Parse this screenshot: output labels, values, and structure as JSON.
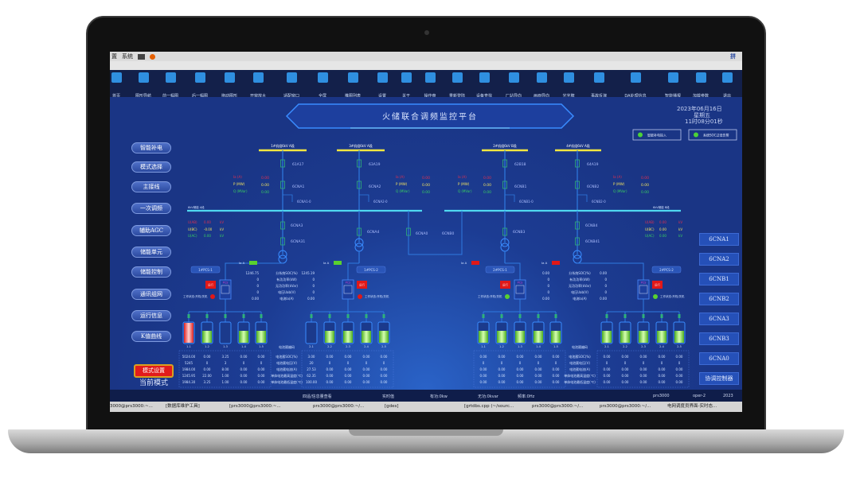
{
  "os_bar": {
    "items": [
      "置",
      "系统"
    ],
    "input_method": "拼"
  },
  "toolbar": {
    "items": [
      {
        "label": "首页",
        "icon": "home-icon"
      },
      {
        "label": "图形导航",
        "icon": "grid-icon"
      },
      {
        "label": "前一幅图",
        "icon": "back-icon"
      },
      {
        "label": "后一幅图",
        "icon": "forward-icon"
      },
      {
        "label": "拖动图形",
        "icon": "move-icon"
      },
      {
        "label": "开窗放大",
        "icon": "zoom-window-icon"
      },
      {
        "label": "适配窗口",
        "icon": "fit-window-icon"
      },
      {
        "label": "全屏",
        "icon": "fullscreen-icon"
      },
      {
        "label": "推图列表",
        "icon": "list-icon"
      },
      {
        "label": "设置",
        "icon": "gear-icon"
      },
      {
        "label": "关于",
        "icon": "info-icon"
      },
      {
        "label": "操作盘",
        "icon": "dial-icon"
      },
      {
        "label": "重新登陆",
        "icon": "users-icon"
      },
      {
        "label": "设备查找",
        "icon": "search-icon"
      },
      {
        "label": "厂站导向",
        "icon": "building-icon"
      },
      {
        "label": "画面导向",
        "icon": "monitor-icon"
      },
      {
        "label": "光字牌",
        "icon": "panel-icon"
      },
      {
        "label": "事故反演",
        "icon": "replay-icon"
      },
      {
        "label": "DA处理信息",
        "icon": "tree-icon"
      },
      {
        "label": "智能播报",
        "icon": "broadcast-icon"
      },
      {
        "label": "加载参数",
        "icon": "hourglass-icon"
      },
      {
        "label": "退出",
        "icon": "exit-icon"
      }
    ]
  },
  "header": {
    "title": "火储联合调频监控平台",
    "date": "2023年06月16日",
    "weekday": "星期五",
    "time": "11时08分01秒",
    "indicators": [
      {
        "label": "智能补电投入",
        "color": "#4cd137"
      },
      {
        "label": "系统SOC过低告警",
        "color": "#4cd137"
      }
    ]
  },
  "left_menu": [
    "智能补电",
    "模式选择",
    "主接线",
    "一次调频",
    "辅助AGC",
    "储能单元",
    "储能控制",
    "通讯组网",
    "运行信息",
    "K值曲线"
  ],
  "mode": {
    "button": "模式设置",
    "current_label": "当前模式"
  },
  "right_menu": [
    "6CNA1",
    "6CNA2",
    "6CNB1",
    "6CNB2",
    "6CNA3",
    "6CNB3",
    "6CNA0",
    "协调控制器"
  ],
  "diagram": {
    "feeders": [
      {
        "bus": "1#机组6kV A段",
        "brk1": "61A17",
        "brk2": "6CNA1",
        "branch": "6CNA1-0",
        "ia": "0.00",
        "p": "0.00",
        "q": "0.00"
      },
      {
        "bus": "3#机组6kV A段",
        "brk1": "63A19",
        "brk2": "6CNA2",
        "branch": "6CNA2-0",
        "ia": "0.00",
        "p": "0.00",
        "q": "0.00"
      },
      {
        "bus": "2#机组6kV B段",
        "brk1": "62B18",
        "brk2": "6CNB1",
        "branch": "6CNB1-0",
        "ia": "0.00",
        "p": "0.00",
        "q": "0.00"
      },
      {
        "bus": "4#机组6kV A段",
        "brk1": "64A19",
        "brk2": "6CNB2",
        "branch": "6CNB2-0",
        "ia": "0.00",
        "p": "0.00",
        "q": "0.00"
      }
    ],
    "meas_labels": {
      "ia": "Ia (A)",
      "p": "P (MW)",
      "q": "Q (MVar)"
    },
    "storage_buses": [
      {
        "name": "6kV储能 A段",
        "uab": "0.00",
        "ubc": "-0.00",
        "uac": "0.00"
      },
      {
        "name": "6kV储能 B段",
        "uab": "0.00",
        "ubc": "0.00",
        "uac": "0.00"
      }
    ],
    "volt_labels": {
      "uab": "U(AB)",
      "ubc": "U(BC)",
      "uac": "U(AC)",
      "unit": "kV"
    },
    "lower_breakers": [
      "6CNA3",
      "6CNA31",
      "6CNA4",
      "6CNA0",
      "6CNB0",
      "6CNB3",
      "6CNB4",
      "6CNB41"
    ],
    "pcs_info_labels": [
      "分系统SOC(%)",
      "有功功率(kW)",
      "无功功率(kVar)",
      "电压Uab(V)",
      "电流Ia(A)"
    ],
    "pcs_info": [
      {
        "left": [
          "1246.75",
          "0",
          "0",
          "0",
          "0.00"
        ],
        "right": [
          "1245.19",
          "0",
          "0",
          "0",
          "0.00"
        ]
      },
      {
        "left": [
          "0.00",
          "0",
          "0",
          "0",
          "0.00"
        ],
        "right": [
          "0.00",
          "0",
          "0",
          "0",
          "0.00"
        ]
      }
    ],
    "pcs": [
      {
        "name": "1#PCS-1",
        "ia_label": "Ia A",
        "badge_color": "#59d12f",
        "run": "运行",
        "state": "工作状态:开机/关机",
        "state_color": "#e01818",
        "tag": "PCS"
      },
      {
        "name": "1#PCS-2",
        "ia_label": "Ia A",
        "badge_color": "#59d12f",
        "run": "运行",
        "state": "工作状态:开机/关机",
        "state_color": "#e01818",
        "tag": "PCS"
      },
      {
        "name": "2#PCS-1",
        "ia_label": "Ia A",
        "badge_color": "#e01818",
        "run": "运行",
        "state": "工作状态:开机/关机",
        "state_color": "#59d12f",
        "tag": "PCS"
      },
      {
        "name": "2#PCS-2",
        "ia_label": "Ia A",
        "badge_color": "#e01818",
        "run": "运行",
        "state": "工作状态:开机/关机",
        "state_color": "#59d12f",
        "tag": "PCS"
      }
    ],
    "table_labels": [
      "电池簇编码",
      "电池簇SOC(%)",
      "电池簇电压(V)",
      "电池簇电流(A)",
      "单体电池最高温度(℃)",
      "单体电池最低温度(℃)"
    ],
    "battery_groups": [
      {
        "clusters": [
          {
            "id": "1-1",
            "level": 1.0,
            "state": "alarm"
          },
          {
            "id": "1-2",
            "level": 0.6,
            "state": "normal"
          },
          {
            "id": "1-3",
            "level": 0.0,
            "state": "normal"
          },
          {
            "id": "1-4",
            "level": 0.6,
            "state": "normal"
          },
          {
            "id": "1-5",
            "level": 0.6,
            "state": "normal"
          }
        ],
        "rows": [
          [
            "5024.00",
            "0.00",
            "3.25",
            "0.00",
            "0.00"
          ],
          [
            "5245",
            "0",
            "3",
            "0",
            "0"
          ],
          [
            "1984.00",
            "0.00",
            "8.00",
            "0.00",
            "0.00"
          ],
          [
            "1245.95",
            "22.00",
            "1.00",
            "0.00",
            "0.00"
          ],
          [
            "1984.30",
            "3.25",
            "1.00",
            "0.00",
            "0.00"
          ]
        ]
      },
      {
        "clusters": [
          {
            "id": "2-1",
            "level": 0.0,
            "state": "normal"
          },
          {
            "id": "2-2",
            "level": 0.6,
            "state": "normal"
          },
          {
            "id": "2-3",
            "level": 0.6,
            "state": "normal"
          },
          {
            "id": "2-4",
            "level": 0.6,
            "state": "normal"
          },
          {
            "id": "2-5",
            "level": 0.6,
            "state": "normal"
          }
        ],
        "rows": [
          [
            "3.00",
            "0.00",
            "0.00",
            "0.00",
            "0.00"
          ],
          [
            "20",
            "0",
            "0",
            "0",
            "0"
          ],
          [
            "27.53",
            "0.00",
            "0.00",
            "0.00",
            "0.00"
          ],
          [
            "62.35",
            "0.00",
            "0.00",
            "0.00",
            "0.00"
          ],
          [
            "100.00",
            "0.00",
            "0.00",
            "0.00",
            "0.00"
          ]
        ]
      },
      {
        "clusters": [
          {
            "id": "1-1",
            "level": 0.6,
            "state": "normal"
          },
          {
            "id": "1-2",
            "level": 0.6,
            "state": "normal"
          },
          {
            "id": "1-3",
            "level": 0.6,
            "state": "normal"
          },
          {
            "id": "1-4",
            "level": 0.6,
            "state": "normal"
          },
          {
            "id": "1-5",
            "level": 0.6,
            "state": "normal"
          }
        ],
        "rows": [
          [
            "0.00",
            "0.00",
            "0.00",
            "0.00",
            "0.00"
          ],
          [
            "0",
            "0",
            "0",
            "0",
            "0"
          ],
          [
            "0.00",
            "0.00",
            "0.00",
            "0.00",
            "0.00"
          ],
          [
            "0.00",
            "0.00",
            "0.00",
            "0.00",
            "0.00"
          ],
          [
            "0.00",
            "0.00",
            "0.00",
            "0.00",
            "0.00"
          ]
        ]
      },
      {
        "clusters": [
          {
            "id": "2-1",
            "level": 0.6,
            "state": "normal"
          },
          {
            "id": "2-2",
            "level": 0.6,
            "state": "normal"
          },
          {
            "id": "2-3",
            "level": 0.6,
            "state": "normal"
          },
          {
            "id": "2-4",
            "level": 0.6,
            "state": "normal"
          },
          {
            "id": "2-5",
            "level": 0.6,
            "state": "normal"
          }
        ],
        "rows": [
          [
            "0.00",
            "0.00",
            "0.00",
            "0.00",
            "0.00"
          ],
          [
            "0",
            "0",
            "0",
            "0",
            "0"
          ],
          [
            "0.00",
            "0.00",
            "0.00",
            "0.00",
            "0.00"
          ],
          [
            "0.00",
            "0.00",
            "0.00",
            "0.00",
            "0.00"
          ],
          [
            "0.00",
            "0.00",
            "0.00",
            "0.00",
            "0.00"
          ]
        ]
      }
    ]
  },
  "status_bar": {
    "items": [
      "四遥/信息量查看",
      "实时值",
      "有功:0kw",
      "无功:0kvar",
      "频率:0Hz",
      "prs3000",
      "oper-2",
      "2023"
    ]
  },
  "taskbar": {
    "items": [
      "3000@prs3000:~...",
      "[数据库维护工具]",
      "[prs3000@prs3000:~...",
      "prs3000@prs3000:~/...",
      "[gdes]",
      "[grtdbs.cpp (~/sourc...",
      "prs3000@prs3000:~/...",
      "prs3000@prs3000:~/...",
      "电网调度员界面-实时态..."
    ]
  },
  "colors": {
    "background": "#1a3585",
    "bus_yellow": "#f2e640",
    "bus_cyan": "#4fd8f0",
    "alarm": "#e01818",
    "ok": "#59d12f"
  }
}
